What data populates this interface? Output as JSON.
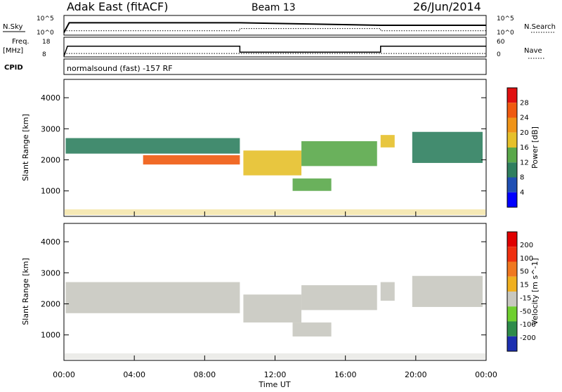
{
  "header": {
    "station": "Adak East (fitACF)",
    "beam": "Beam 13",
    "date": "26/Jun/2014"
  },
  "time_axis": {
    "label": "Time UT",
    "ticks": [
      "00:00",
      "04:00",
      "08:00",
      "12:00",
      "16:00",
      "20:00",
      "00:00"
    ]
  },
  "panels": {
    "nsky": {
      "label": "N.Sky",
      "right_label": "N.Search",
      "left_ticks": [
        "10^5",
        "10^0"
      ],
      "right_ticks": [
        "10^5",
        "10^0"
      ]
    },
    "freq": {
      "label": "Freq.",
      "unit": "[MHz]",
      "left_ticks": [
        "18",
        "8"
      ],
      "right_label": "Nave",
      "right_ticks": [
        "60",
        "0"
      ]
    },
    "cpid": {
      "label": "CPID",
      "text": "normalsound (fast) -157 RF"
    },
    "power": {
      "ylabel": "Slant Range [km]",
      "yticks": [
        "4000",
        "3000",
        "2000",
        "1000"
      ],
      "colorbar_label": "Power [dB]",
      "colorbar_ticks": [
        "28",
        "24",
        "20",
        "16",
        "12",
        "8",
        "4"
      ]
    },
    "velocity": {
      "ylabel": "Slant Range [km]",
      "yticks": [
        "4000",
        "3000",
        "2000",
        "1000"
      ],
      "colorbar_label": "Velocity [m s^-1]",
      "colorbar_ticks": [
        "200",
        "100",
        "50",
        "15",
        "-15",
        "-50",
        "-100",
        "-200"
      ]
    }
  },
  "colors": {
    "power_scale": [
      "#0000ff",
      "#1f4fb4",
      "#2f7f5f",
      "#5aa84a",
      "#e6c02a",
      "#f09418",
      "#f05a10",
      "#e01010"
    ],
    "velocity_scale": [
      "#1c2fb0",
      "#2e8b4a",
      "#6fcf2f",
      "#c8c8c0",
      "#f0b020",
      "#f07820",
      "#f03010",
      "#e00000"
    ]
  },
  "chart_data": [
    {
      "type": "line",
      "series": [
        {
          "x": [
            0,
            0.3,
            10,
            18,
            24
          ],
          "y": [
            0.5,
            3.2,
            3.2,
            2.5,
            2.5
          ]
        },
        {
          "x": [
            0,
            10,
            10,
            18,
            18,
            24
          ],
          "y": [
            1.0,
            1.0,
            1.6,
            1.6,
            1.0,
            1.0
          ]
        }
      ],
      "xlim": [
        0,
        24
      ]
    },
    {
      "type": "line",
      "series": [
        {
          "x": [
            0,
            0.2,
            10,
            10,
            18,
            18,
            24
          ],
          "y": [
            8,
            13.5,
            13.5,
            10.2,
            10.2,
            13.5,
            13.5
          ]
        },
        {
          "x": [
            0,
            24
          ],
          "y": [
            9.5,
            9.5
          ]
        }
      ],
      "xlim": [
        0,
        24
      ],
      "ylim": [
        8,
        18
      ]
    },
    {
      "type": "heatmap",
      "xlim": [
        0,
        24
      ],
      "ylim": [
        180,
        4590
      ],
      "scale_range": [
        0,
        32
      ],
      "regions": [
        {
          "x": [
            0.1,
            10
          ],
          "range": [
            2200,
            2700
          ],
          "value": 10
        },
        {
          "x": [
            4.5,
            10
          ],
          "range": [
            1850,
            2150
          ],
          "value": 25
        },
        {
          "x": [
            10.2,
            13.5
          ],
          "range": [
            1500,
            2300
          ],
          "value": 16
        },
        {
          "x": [
            13.5,
            17.8
          ],
          "range": [
            1800,
            2600
          ],
          "value": 12
        },
        {
          "x": [
            13,
            15.2
          ],
          "range": [
            1000,
            1400
          ],
          "value": 14
        },
        {
          "x": [
            18,
            18.8
          ],
          "range": [
            2400,
            2800
          ],
          "value": 16
        },
        {
          "x": [
            19.8,
            23.8
          ],
          "range": [
            1900,
            2900
          ],
          "value": 9
        }
      ]
    },
    {
      "type": "heatmap",
      "xlim": [
        0,
        24
      ],
      "ylim": [
        180,
        4590
      ],
      "scale_range": [
        -200,
        200
      ],
      "regions": [
        {
          "x": [
            0.1,
            10
          ],
          "range": [
            1700,
            2700
          ],
          "value": 0
        },
        {
          "x": [
            10.2,
            13.5
          ],
          "range": [
            1400,
            2300
          ],
          "value": 0
        },
        {
          "x": [
            13.5,
            17.8
          ],
          "range": [
            1800,
            2600
          ],
          "value": 30
        },
        {
          "x": [
            13,
            15.2
          ],
          "range": [
            950,
            1400
          ],
          "value": 30
        },
        {
          "x": [
            18,
            18.8
          ],
          "range": [
            2100,
            2700
          ],
          "value": 0
        },
        {
          "x": [
            19.8,
            23.8
          ],
          "range": [
            1900,
            2900
          ],
          "value": 0
        }
      ]
    }
  ]
}
